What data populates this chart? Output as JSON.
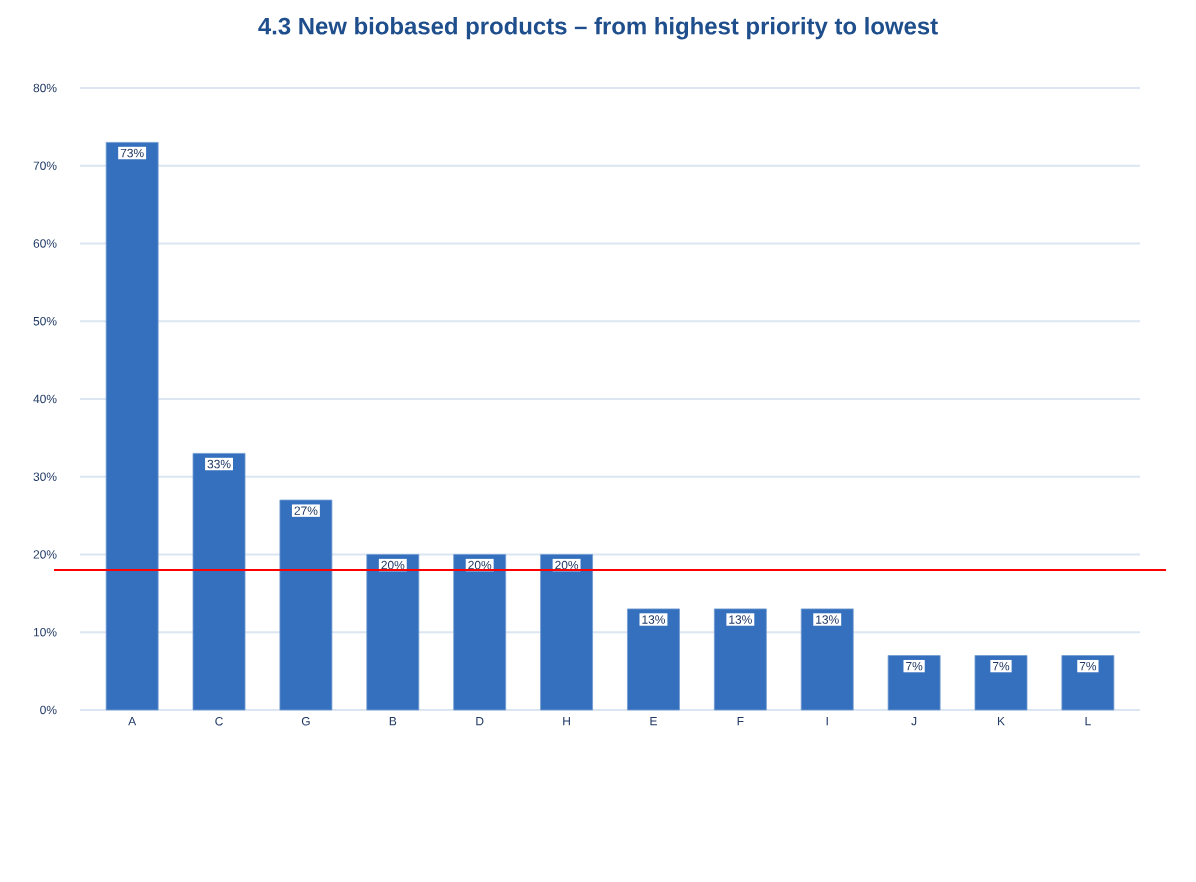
{
  "chart_data": {
    "type": "bar",
    "title": "4.3 New biobased products – from highest priority to lowest",
    "categories": [
      "A",
      "C",
      "G",
      "B",
      "D",
      "H",
      "E",
      "F",
      "I",
      "J",
      "K",
      "L"
    ],
    "values": [
      73,
      33,
      27,
      20,
      20,
      20,
      13,
      13,
      13,
      7,
      7,
      7
    ],
    "value_labels": [
      "73%",
      "33%",
      "27%",
      "20%",
      "20%",
      "20%",
      "13%",
      "13%",
      "13%",
      "7%",
      "7%",
      "7%"
    ],
    "color": "#3470bd",
    "ylim": [
      0,
      80
    ],
    "yticks": [
      {
        "value": 0,
        "label": "0%"
      },
      {
        "value": 10,
        "label": "10%"
      },
      {
        "value": 20,
        "label": "20%"
      },
      {
        "value": 30,
        "label": "30%"
      },
      {
        "value": 40,
        "label": "40%"
      },
      {
        "value": 50,
        "label": "50%"
      },
      {
        "value": 60,
        "label": "60%"
      },
      {
        "value": 70,
        "label": "70%"
      },
      {
        "value": 80,
        "label": "80%"
      }
    ],
    "grid": "y",
    "ref_lines": [
      {
        "axis": "y",
        "value": 18,
        "color": "#ff0000"
      }
    ]
  }
}
